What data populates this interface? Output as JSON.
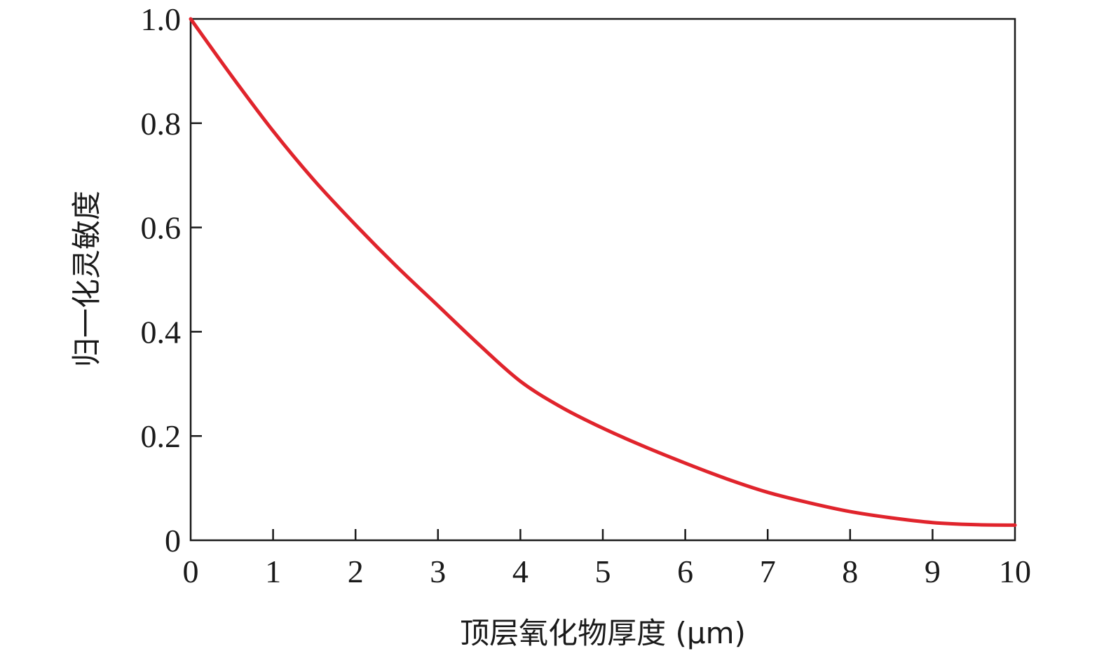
{
  "chart_data": {
    "type": "line",
    "title": "",
    "xlabel": "顶层氧化物厚度 (μm)",
    "ylabel": "归一化灵敏度",
    "xlim": [
      0,
      10
    ],
    "ylim": [
      0,
      1.0
    ],
    "x_ticks": [
      "0",
      "1",
      "2",
      "3",
      "4",
      "5",
      "6",
      "7",
      "8",
      "9",
      "10"
    ],
    "y_ticks": [
      "0",
      "0.2",
      "0.4",
      "0.6",
      "0.8",
      "1.0"
    ],
    "grid": false,
    "legend": "none",
    "series": [
      {
        "color": "#e0242c",
        "x": [
          0,
          0.5,
          1,
          1.5,
          2,
          2.5,
          3,
          3.5,
          4,
          4.5,
          5,
          5.5,
          6,
          6.5,
          7,
          7.5,
          8,
          8.5,
          9,
          9.5,
          10
        ],
        "values": [
          1.0,
          0.89,
          0.785,
          0.69,
          0.605,
          0.525,
          0.45,
          0.375,
          0.305,
          0.255,
          0.215,
          0.18,
          0.148,
          0.118,
          0.092,
          0.072,
          0.055,
          0.043,
          0.034,
          0.03,
          0.029
        ]
      }
    ]
  }
}
